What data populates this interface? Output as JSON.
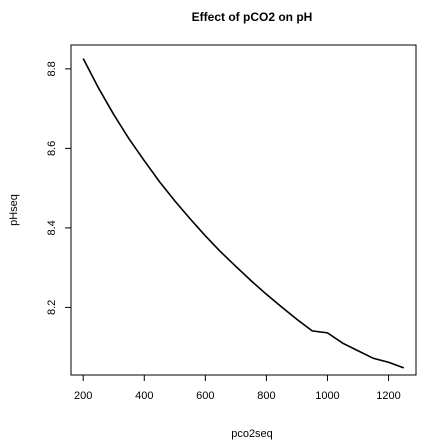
{
  "chart_data": {
    "type": "line",
    "title": "Effect of pCO2 on pH",
    "xlabel": "pco2seq",
    "ylabel": "pHseq",
    "xlim": [
      160,
      1290
    ],
    "ylim": [
      8.03,
      8.86
    ],
    "xticks": [
      200,
      400,
      600,
      800,
      1000,
      1200
    ],
    "yticks": [
      8.2,
      8.4,
      8.6,
      8.8
    ],
    "xtick_labels": [
      "200",
      "400",
      "600",
      "800",
      "1000",
      "1200"
    ],
    "ytick_labels": [
      "8.2",
      "8.4",
      "8.6",
      "8.8"
    ],
    "grid": false,
    "legend": "none",
    "line_color": "#000000",
    "series": [
      {
        "x": [
          200,
          250,
          300,
          350,
          400,
          450,
          500,
          550,
          600,
          650,
          700,
          750,
          800,
          850,
          900,
          950,
          1000,
          1050,
          1100,
          1150,
          1200,
          1250
        ],
        "y": [
          8.826,
          8.752,
          8.685,
          8.624,
          8.569,
          8.516,
          8.468,
          8.423,
          8.38,
          8.34,
          8.303,
          8.267,
          8.233,
          8.201,
          8.17,
          8.141,
          8.136,
          8.11,
          8.091,
          8.072,
          8.062,
          8.048
        ]
      }
    ]
  }
}
